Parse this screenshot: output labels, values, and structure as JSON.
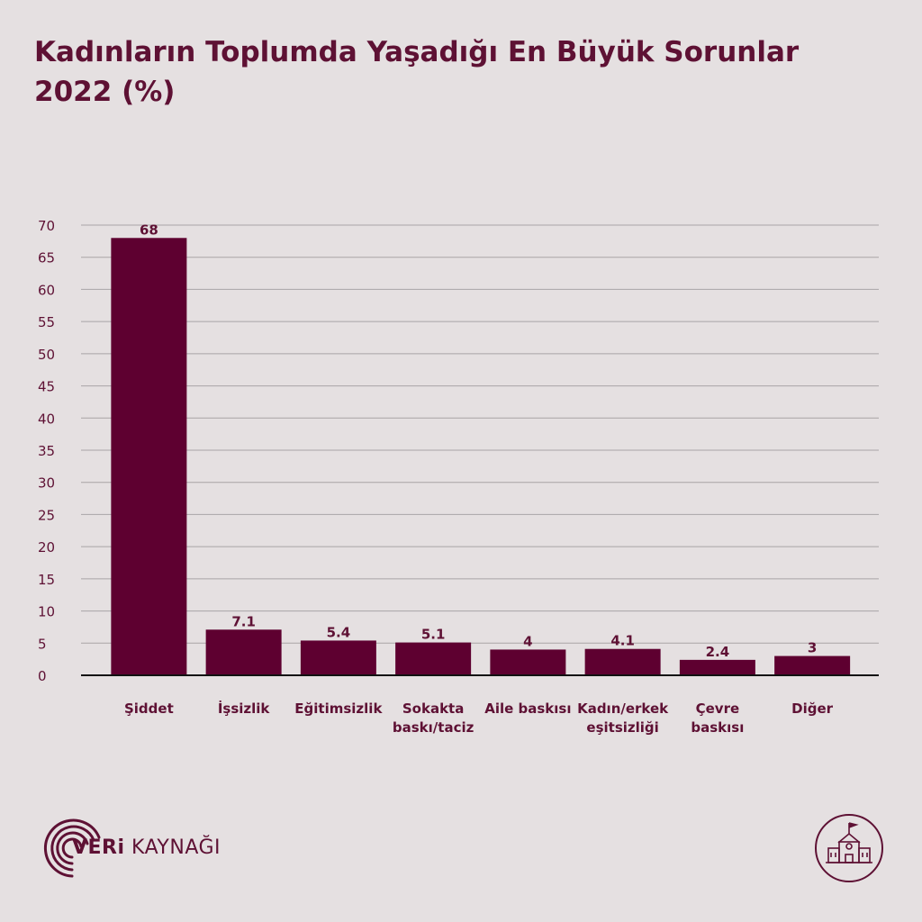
{
  "title": {
    "line1": "Kadınların Toplumda Yaşadığı En Büyük Sorunlar",
    "line2": "2022 (%)"
  },
  "chart_data": {
    "type": "bar",
    "title": "Kadınların Toplumda Yaşadığı En Büyük Sorunlar 2022 (%)",
    "categories": [
      [
        "Şiddet"
      ],
      [
        "İşsizlik"
      ],
      [
        "Eğitimsizlik"
      ],
      [
        "Sokakta",
        "baskı/taciz"
      ],
      [
        "Aile baskısı"
      ],
      [
        "Kadın/erkek",
        "eşitsizliği"
      ],
      [
        "Çevre",
        "baskısı"
      ],
      [
        "Diğer"
      ]
    ],
    "values": [
      68,
      7.1,
      5.4,
      5.1,
      4,
      4.1,
      2.4,
      3
    ],
    "value_labels": [
      "68",
      "7.1",
      "5.4",
      "5.1",
      "4",
      "4.1",
      "2.4",
      "3"
    ],
    "yticks": [
      "0",
      "5",
      "10",
      "15",
      "20",
      "25",
      "30",
      "35",
      "40",
      "45",
      "50",
      "55",
      "60",
      "65",
      "70"
    ],
    "ylim": [
      0,
      70
    ],
    "grid": true,
    "bar_color": "#5e0030",
    "grid_color": "#a9a4a6",
    "text_color": "#5e1134"
  },
  "brand": {
    "logo_bold": "VERi",
    "logo_light": "KAYNAĞI",
    "logo_icon": "sound-wave-arcs-icon",
    "badge_icon": "school-building-icon",
    "color": "#5e1134"
  }
}
